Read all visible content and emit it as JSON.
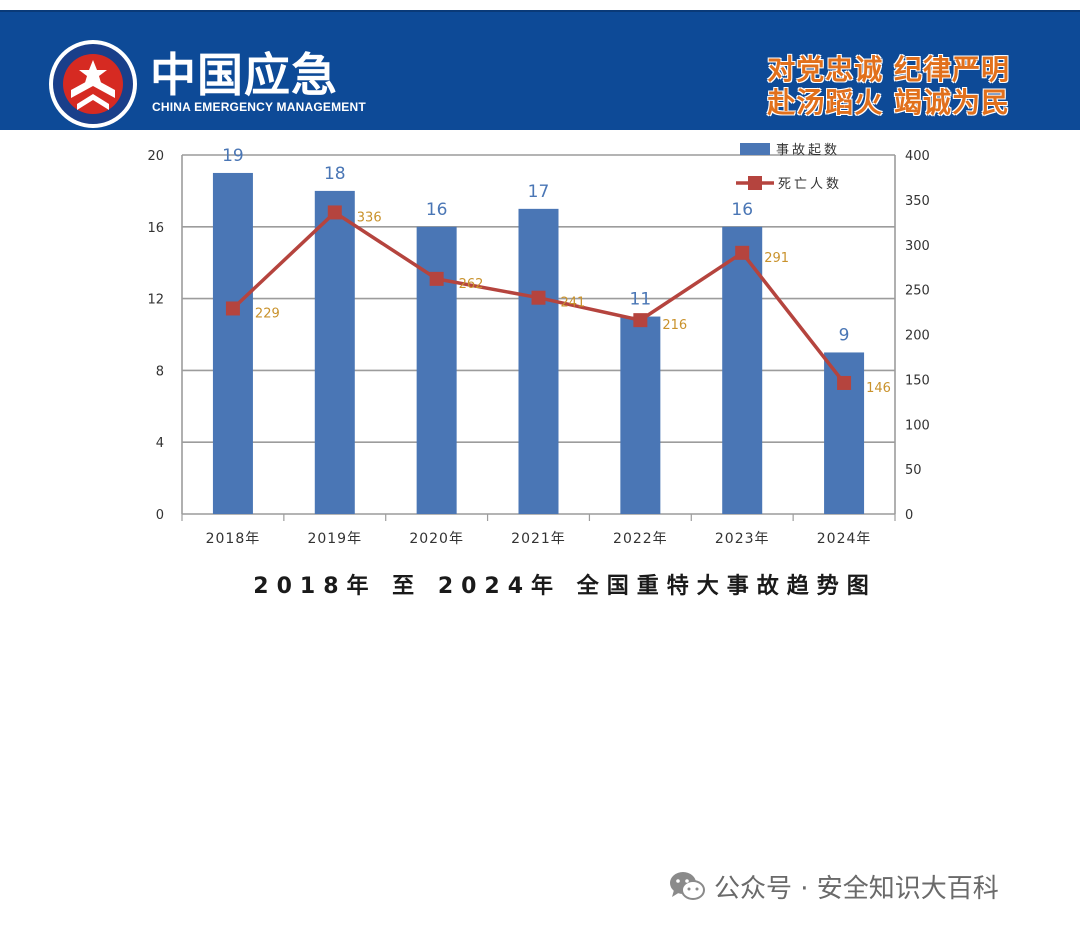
{
  "header": {
    "brand_cn": "中国应急",
    "brand_en": "CHINA EMERGENCY MANAGEMENT",
    "slogan_line1": "对党忠诚  纪律严明",
    "slogan_line2": "赴汤蹈火  竭诚为民",
    "logo_icon": "china-emergency-emblem-icon",
    "banner_color": "#0d4a97",
    "slogan_color": "#e1701c"
  },
  "chart_data": {
    "type": "bar",
    "title": "2018年 至 2024年 全国重特大事故趋势图",
    "categories": [
      "2018年",
      "2019年",
      "2020年",
      "2021年",
      "2022年",
      "2023年",
      "2024年"
    ],
    "series": [
      {
        "name": "事故起数",
        "type": "bar",
        "axis": "left",
        "values": [
          19,
          18,
          16,
          17,
          11,
          16,
          9
        ],
        "color": "#4a76b5",
        "label_color": "#4a76b5"
      },
      {
        "name": "死亡人数",
        "type": "line",
        "axis": "right",
        "values": [
          229,
          336,
          262,
          241,
          216,
          291,
          146
        ],
        "color": "#b5443e",
        "label_color": "#c9922c"
      }
    ],
    "y_left": {
      "ylim": [
        0,
        20
      ],
      "ticks": [
        "0",
        "4",
        "8",
        "12",
        "16",
        "20"
      ]
    },
    "y_right": {
      "ylim": [
        0,
        400
      ],
      "ticks": [
        "0",
        "50",
        "100",
        "150",
        "200",
        "250",
        "300",
        "350",
        "400"
      ]
    },
    "legend": "top-right",
    "grid": true
  },
  "watermark": {
    "text": "公众号 · 安全知识大百科",
    "icon": "wechat-icon"
  }
}
